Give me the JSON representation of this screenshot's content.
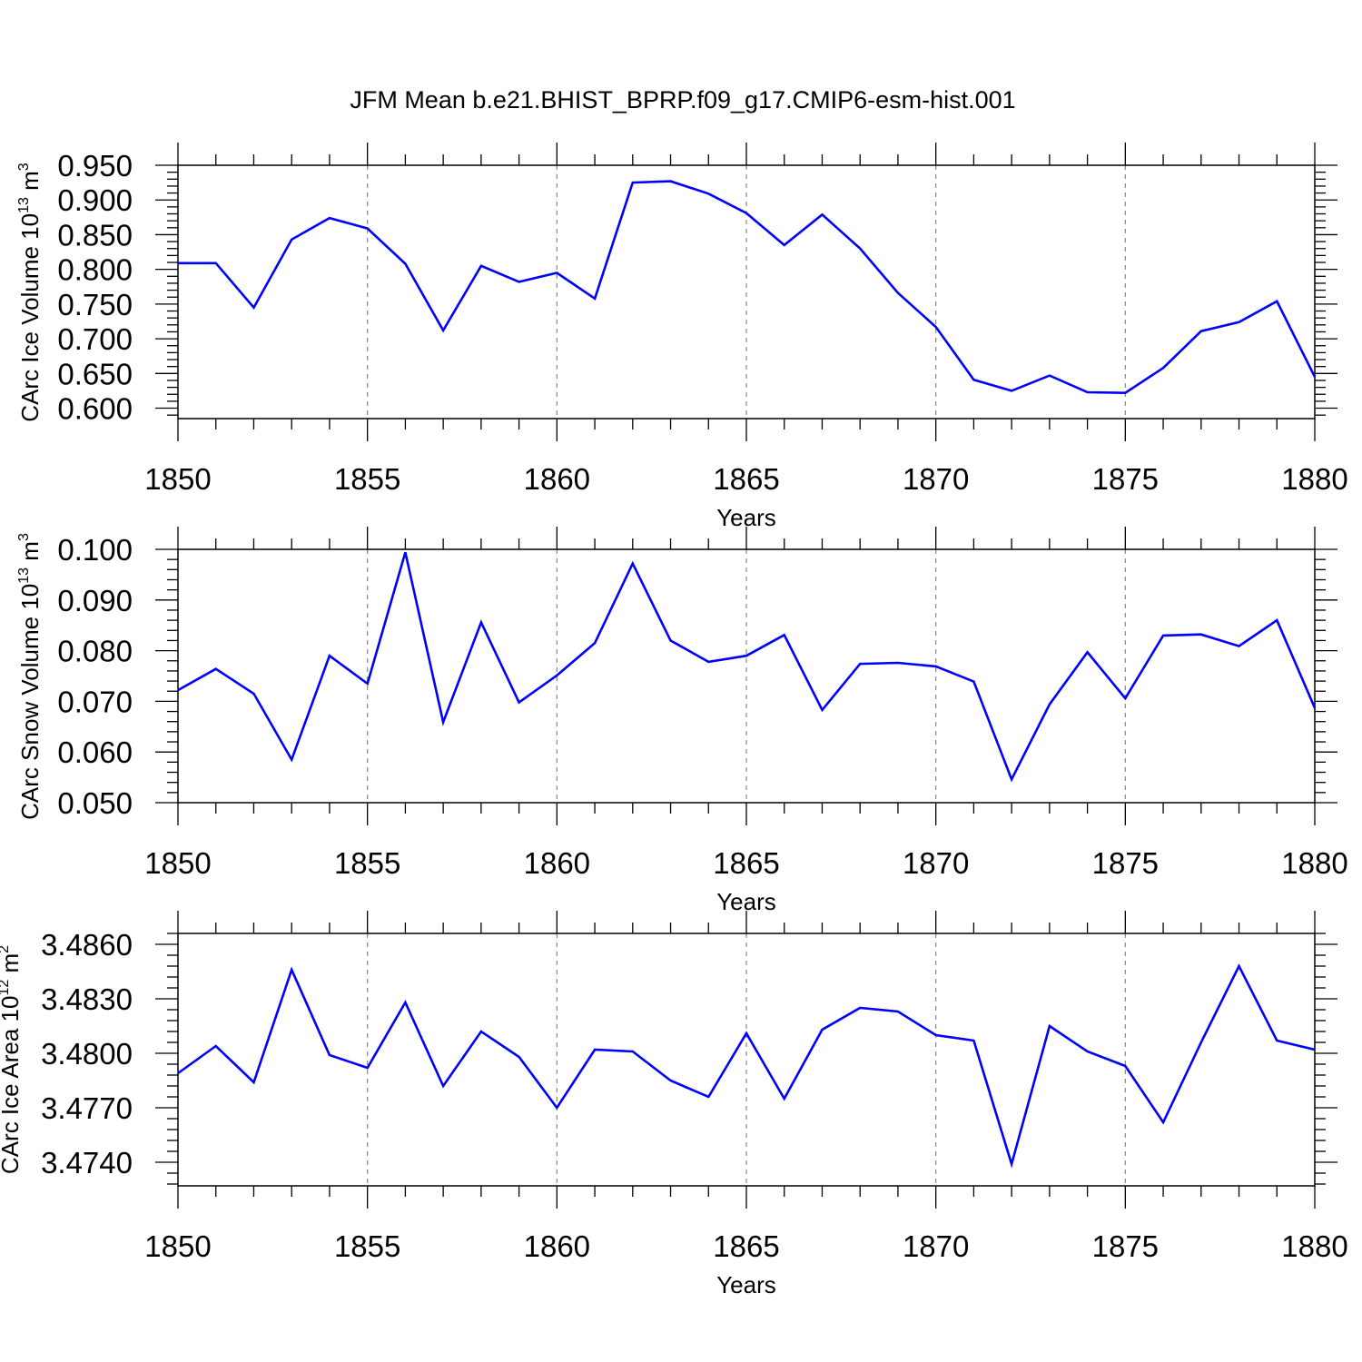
{
  "title": "JFM Mean b.e21.BHIST_BPRP.f09_g17.CMIP6-esm-hist.001",
  "chart_data": [
    {
      "type": "line",
      "title": "JFM Mean b.e21.BHIST_BPRP.f09_g17.CMIP6-esm-hist.001",
      "xlabel": "Years",
      "ylabel_main": "CArc Ice Volume 10",
      "ylabel_sup": "13",
      "ylabel_unit": " m",
      "ylabel_unit_sup": "3",
      "xlim": [
        1850,
        1880
      ],
      "ylim": [
        0.585,
        0.95
      ],
      "xticks": [
        "1850",
        "1855",
        "1860",
        "1865",
        "1870",
        "1875",
        "1880"
      ],
      "yticks": [
        "0.600",
        "0.650",
        "0.700",
        "0.750",
        "0.800",
        "0.850",
        "0.900",
        "0.950"
      ],
      "grid": "vertical dashed at major x ticks",
      "line_color": "#0000ff",
      "series": [
        {
          "x": [
            1850,
            1851,
            1852,
            1853,
            1854,
            1855,
            1856,
            1857,
            1858,
            1859,
            1860,
            1861,
            1862,
            1863,
            1864,
            1865,
            1866,
            1867,
            1868,
            1869,
            1870,
            1871,
            1872,
            1873,
            1874,
            1875,
            1876,
            1877,
            1878,
            1879,
            1880
          ],
          "values": [
            0.809,
            0.809,
            0.745,
            0.843,
            0.874,
            0.859,
            0.808,
            0.712,
            0.805,
            0.782,
            0.795,
            0.758,
            0.925,
            0.927,
            0.909,
            0.881,
            0.835,
            0.879,
            0.83,
            0.766,
            0.717,
            0.641,
            0.625,
            0.647,
            0.623,
            0.622,
            0.658,
            0.711,
            0.724,
            0.754,
            0.645
          ]
        }
      ]
    },
    {
      "type": "line",
      "xlabel": "Years",
      "ylabel_main": "CArc Snow Volume 10",
      "ylabel_sup": "13",
      "ylabel_unit": " m",
      "ylabel_unit_sup": "3",
      "xlim": [
        1850,
        1880
      ],
      "ylim": [
        0.05,
        0.1
      ],
      "xticks": [
        "1850",
        "1855",
        "1860",
        "1865",
        "1870",
        "1875",
        "1880"
      ],
      "yticks": [
        "0.050",
        "0.060",
        "0.070",
        "0.080",
        "0.090",
        "0.100"
      ],
      "grid": "vertical dashed at major x ticks",
      "line_color": "#0000ff",
      "series": [
        {
          "x": [
            1850,
            1851,
            1852,
            1853,
            1854,
            1855,
            1856,
            1857,
            1858,
            1859,
            1860,
            1861,
            1862,
            1863,
            1864,
            1865,
            1866,
            1867,
            1868,
            1869,
            1870,
            1871,
            1872,
            1873,
            1874,
            1875,
            1876,
            1877,
            1878,
            1879,
            1880
          ],
          "values": [
            0.0722,
            0.0764,
            0.0715,
            0.0585,
            0.079,
            0.0735,
            0.0994,
            0.0659,
            0.0856,
            0.0698,
            0.0751,
            0.0815,
            0.0972,
            0.082,
            0.0778,
            0.079,
            0.0831,
            0.0683,
            0.0774,
            0.0776,
            0.0769,
            0.0739,
            0.0546,
            0.0694,
            0.0797,
            0.0706,
            0.083,
            0.0832,
            0.0809,
            0.086,
            0.0687
          ]
        }
      ]
    },
    {
      "type": "line",
      "xlabel": "Years",
      "ylabel_main": "CArc Ice Area 10",
      "ylabel_sup": "12",
      "ylabel_unit": " m",
      "ylabel_unit_sup": "2",
      "xlim": [
        1850,
        1880
      ],
      "ylim": [
        3.4727,
        3.4866
      ],
      "xticks": [
        "1850",
        "1855",
        "1860",
        "1865",
        "1870",
        "1875",
        "1880"
      ],
      "yticks": [
        "3.4740",
        "3.4770",
        "3.4800",
        "3.4830",
        "3.4860"
      ],
      "grid": "vertical dashed at major x ticks",
      "line_color": "#0000ff",
      "series": [
        {
          "x": [
            1850,
            1851,
            1852,
            1853,
            1854,
            1855,
            1856,
            1857,
            1858,
            1859,
            1860,
            1861,
            1862,
            1863,
            1864,
            1865,
            1866,
            1867,
            1868,
            1869,
            1870,
            1871,
            1872,
            1873,
            1874,
            1875,
            1876,
            1877,
            1878,
            1879,
            1880
          ],
          "values": [
            3.4789,
            3.4804,
            3.4784,
            3.4846,
            3.4799,
            3.4792,
            3.4828,
            3.4782,
            3.4812,
            3.4798,
            3.477,
            3.4802,
            3.4801,
            3.4785,
            3.4776,
            3.4811,
            3.4775,
            3.4813,
            3.4825,
            3.4823,
            3.481,
            3.4807,
            3.4739,
            3.4815,
            3.4801,
            3.4793,
            3.4762,
            3.4806,
            3.4848,
            3.4807,
            3.4802
          ]
        }
      ]
    }
  ]
}
